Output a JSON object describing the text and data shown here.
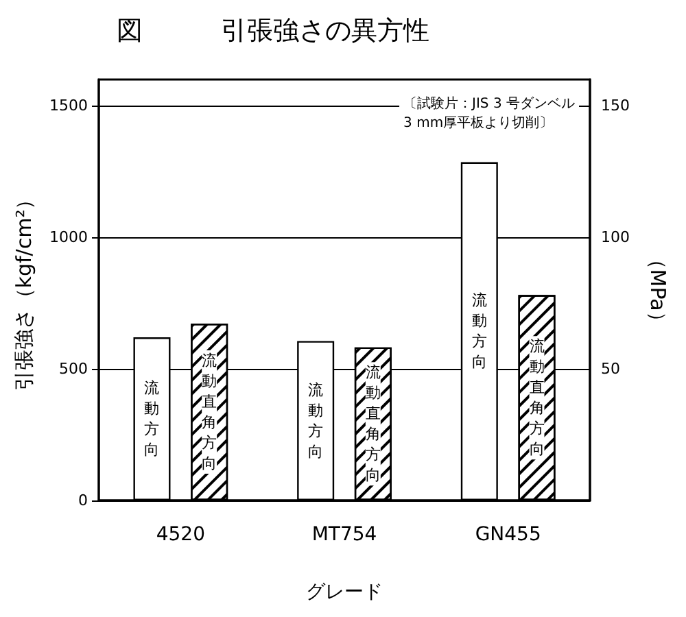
{
  "chart_data": {
    "type": "bar",
    "title": "図　　　引張強さの異方性",
    "xlabel": "グレード",
    "ylabel": "引張強さ（kgf/cm²）",
    "y2label": "（MPa）",
    "categories": [
      "4520",
      "MT754",
      "GN455"
    ],
    "series": [
      {
        "name": "流動方向",
        "color": "#ffffff",
        "values": [
          620,
          606,
          1286
        ]
      },
      {
        "name": "流動直角方向",
        "color": "#ffffff",
        "values": [
          672,
          582,
          781
        ]
      }
    ],
    "ylim": [
      0,
      1600
    ],
    "yticks": [
      0,
      500,
      1000,
      1500
    ],
    "y2lim": [
      0,
      160
    ],
    "y2ticks": [
      50,
      100,
      150
    ],
    "grid": "y",
    "legend": false,
    "annotations": [
      "〔試験片：JIS 3 号ダンベル\n3 mm厚平板より切削〕"
    ]
  }
}
